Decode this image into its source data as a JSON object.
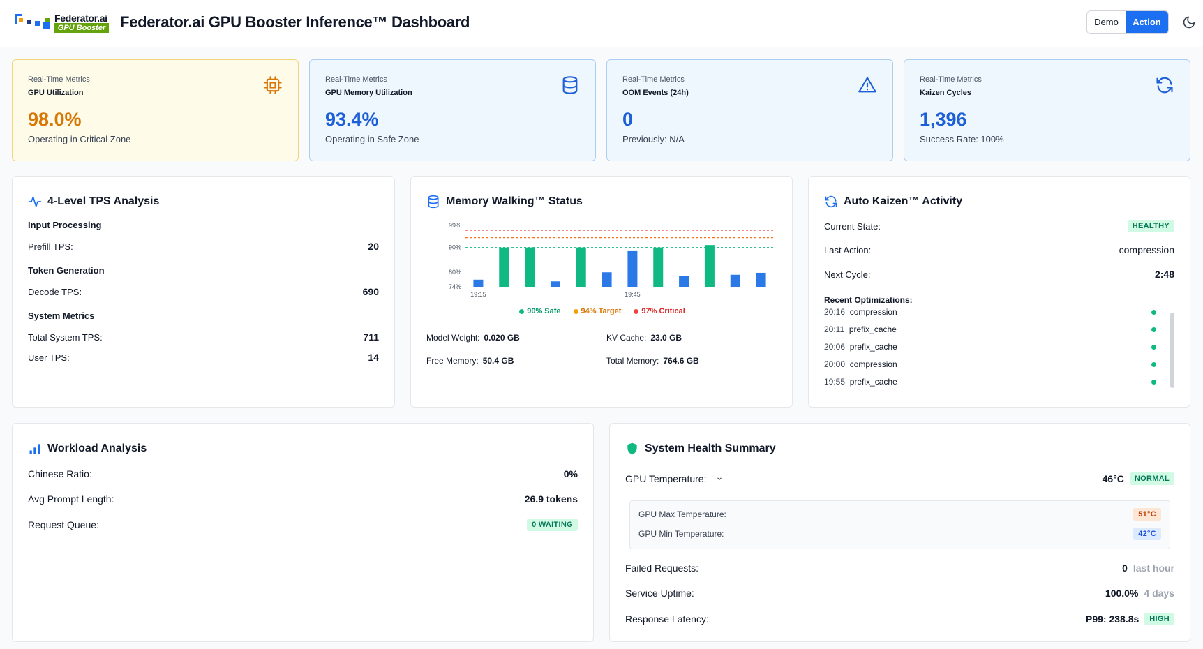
{
  "header": {
    "logo_text": "Federator.ai",
    "logo_sub": "GPU Booster",
    "title": "Federator.ai GPU Booster Inference™ Dashboard",
    "mode_demo": "Demo",
    "mode_action": "Action"
  },
  "metrics": [
    {
      "label": "Real-Time Metrics",
      "name": "GPU Utilization",
      "value": "98.0%",
      "sub": "Operating in Critical Zone",
      "color": "#d97706",
      "icon": "cpu-icon"
    },
    {
      "label": "Real-Time Metrics",
      "name": "GPU Memory Utilization",
      "value": "93.4%",
      "sub": "Operating in Safe Zone",
      "color": "#1d5fd6",
      "icon": "database-icon"
    },
    {
      "label": "Real-Time Metrics",
      "name": "OOM Events (24h)",
      "value": "0",
      "sub": "Previously: N/A",
      "color": "#1d5fd6",
      "icon": "alert-triangle-icon"
    },
    {
      "label": "Real-Time Metrics",
      "name": "Kaizen Cycles",
      "value": "1,396",
      "sub": "Success Rate: 100%",
      "color": "#1d5fd6",
      "icon": "refresh-icon"
    }
  ],
  "tps": {
    "title": "4-Level TPS Analysis",
    "input_section": "Input Processing",
    "prefill_label": "Prefill TPS:",
    "prefill_value": "20",
    "token_section": "Token Generation",
    "decode_label": "Decode TPS:",
    "decode_value": "690",
    "system_section": "System Metrics",
    "total_label": "Total System TPS:",
    "total_value": "711",
    "user_label": "User TPS:",
    "user_value": "14"
  },
  "memory": {
    "title": "Memory Walking™ Status",
    "model_weight_label": "Model Weight:",
    "model_weight_value": "0.020 GB",
    "kv_cache_label": "KV Cache:",
    "kv_cache_value": "23.0 GB",
    "free_label": "Free Memory:",
    "free_value": "50.4 GB",
    "total_label": "Total Memory:",
    "total_value": "764.6 GB",
    "legend": {
      "safe": "90% Safe",
      "target": "94% Target",
      "critical": "97% Critical"
    }
  },
  "chart_data": {
    "type": "bar",
    "x_labels": [
      "19:15",
      "19:45"
    ],
    "y_ticks": [
      "99%",
      "90%",
      "80%",
      "74%"
    ],
    "ylim": [
      74,
      99
    ],
    "values": [
      76.9,
      90,
      90,
      76.2,
      90,
      79.9,
      88.8,
      90,
      78.5,
      91,
      78.9,
      79.7
    ],
    "series_colors": [
      "#2b79e6",
      "#10b981",
      "#10b981",
      "#2b79e6",
      "#10b981",
      "#2b79e6",
      "#2b79e6",
      "#10b981",
      "#2b79e6",
      "#10b981",
      "#2b79e6",
      "#2b79e6"
    ],
    "reference_lines": [
      {
        "value": 97,
        "color": "#ef4444"
      },
      {
        "value": 94,
        "color": "#f97316"
      },
      {
        "value": 90,
        "color": "#10b981"
      }
    ]
  },
  "kaizen": {
    "title": "Auto Kaizen™ Activity",
    "state_label": "Current State:",
    "state_value": "HEALTHY",
    "last_label": "Last Action:",
    "last_value": "compression",
    "next_label": "Next Cycle:",
    "next_value": "2:48",
    "recent_label": "Recent Optimizations:",
    "items": [
      {
        "time": "20:16",
        "action": "compression"
      },
      {
        "time": "20:11",
        "action": "prefix_cache"
      },
      {
        "time": "20:06",
        "action": "prefix_cache"
      },
      {
        "time": "20:00",
        "action": "compression"
      },
      {
        "time": "19:55",
        "action": "prefix_cache"
      }
    ]
  },
  "workload": {
    "title": "Workload Analysis",
    "chinese_label": "Chinese Ratio:",
    "chinese_value": "0%",
    "prompt_label": "Avg Prompt Length:",
    "prompt_value": "26.9 tokens",
    "queue_label": "Request Queue:",
    "queue_value": "0 WAITING"
  },
  "health": {
    "title": "System Health Summary",
    "temp_label": "GPU Temperature:",
    "temp_value": "46°C",
    "temp_badge": "NORMAL",
    "max_label": "GPU Max Temperature:",
    "max_value": "51°C",
    "min_label": "GPU Min Temperature:",
    "min_value": "42°C",
    "failed_label": "Failed Requests:",
    "failed_value": "0",
    "failed_suffix": "last hour",
    "uptime_label": "Service Uptime:",
    "uptime_value": "100.0%",
    "uptime_suffix": "4 days",
    "latency_label": "Response Latency:",
    "latency_value": "P99: 238.8s",
    "latency_badge": "HIGH"
  }
}
